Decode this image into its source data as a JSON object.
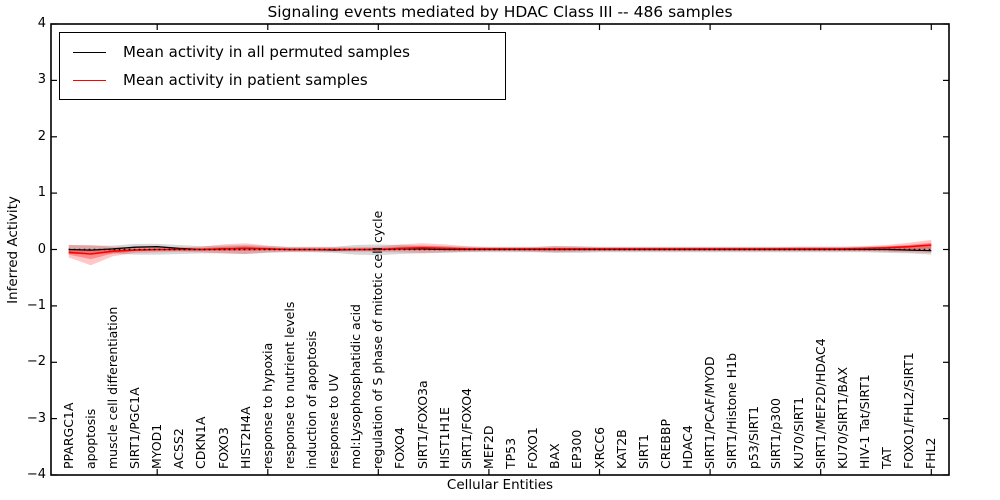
{
  "chart_data": {
    "type": "line",
    "title": "Signaling events mediated by HDAC Class III -- 486 samples",
    "xlabel": "Cellular Entities",
    "ylabel": "Inferred Activity",
    "xlim": [
      0.2,
      40.8
    ],
    "ylim": [
      -4,
      4
    ],
    "grid": false,
    "yticks": [
      {
        "v": 4,
        "label": "4"
      },
      {
        "v": 3,
        "label": "3"
      },
      {
        "v": 2,
        "label": "2"
      },
      {
        "v": 1,
        "label": "1"
      },
      {
        "v": 0,
        "label": "0"
      },
      {
        "v": -1,
        "label": "−1"
      },
      {
        "v": -2,
        "label": "−2"
      },
      {
        "v": -3,
        "label": "−3"
      },
      {
        "v": -4,
        "label": "−4"
      }
    ],
    "xticks_major": [
      5,
      10,
      15,
      20,
      25,
      30,
      35,
      40
    ],
    "legend": {
      "position": "upper left",
      "entries": [
        {
          "label": "Mean activity in all permuted samples",
          "color": "#000000"
        },
        {
          "label": "Mean activity in patient samples",
          "color": "#ff0000"
        }
      ]
    },
    "zero_line": {
      "y": 0,
      "style": "dotted",
      "color": "#000000"
    },
    "categories": [
      "PPARGC1A",
      "apoptosis",
      "muscle cell differentiation",
      "SIRT1/PGC1A",
      "MYOD1",
      "ACSS2",
      "CDKN1A",
      "FOXO3",
      "HIST2H4A",
      "response to hypoxia",
      "response to nutrient levels",
      "induction of apoptosis",
      "response to UV",
      "mol:Lysophosphatidic acid",
      "regulation of S phase of mitotic cell cycle",
      "FOXO4",
      "SIRT1/FOXO3a",
      "HIST1H1E",
      "SIRT1/FOXO4",
      "MEF2D",
      "TP53",
      "FOXO1",
      "BAX",
      "EP300",
      "XRCC6",
      "KAT2B",
      "SIRT1",
      "CREBBP",
      "HDAC4",
      "SIRT1/PCAF/MYOD",
      "SIRT1/Histone H1b",
      "p53/SIRT1",
      "SIRT1/p300",
      "KU70/SIRT1",
      "SIRT1/MEF2D/HDAC4",
      "KU70/SIRT1/BAX",
      "HIV-1 Tat/SIRT1",
      "TAT",
      "FOXO1/FHL2/SIRT1",
      "FHL2"
    ],
    "series": [
      {
        "name": "Mean activity in all permuted samples",
        "color": "#000000",
        "band_color": "rgba(0,0,0,0.16)",
        "values": [
          0.0,
          -0.01,
          0.01,
          0.04,
          0.05,
          0.02,
          0.0,
          0.01,
          0.02,
          0.01,
          0.0,
          0.0,
          -0.01,
          0.0,
          0.0,
          0.01,
          0.01,
          0.0,
          0.0,
          0.0,
          0.0,
          0.0,
          0.0,
          0.0,
          0.0,
          0.0,
          0.0,
          0.0,
          0.0,
          0.0,
          0.0,
          0.0,
          0.0,
          0.0,
          0.0,
          0.0,
          0.0,
          0.0,
          -0.01,
          -0.02
        ],
        "band_hi": [
          0.08,
          0.07,
          0.07,
          0.1,
          0.1,
          0.08,
          0.06,
          0.07,
          0.08,
          0.06,
          0.05,
          0.05,
          0.05,
          0.08,
          0.09,
          0.08,
          0.07,
          0.06,
          0.05,
          0.05,
          0.05,
          0.05,
          0.06,
          0.06,
          0.05,
          0.05,
          0.05,
          0.05,
          0.05,
          0.05,
          0.05,
          0.05,
          0.05,
          0.05,
          0.05,
          0.05,
          0.05,
          0.06,
          0.07,
          0.09
        ],
        "band_lo": [
          -0.08,
          -0.08,
          -0.07,
          -0.09,
          -0.09,
          -0.08,
          -0.07,
          -0.07,
          -0.08,
          -0.06,
          -0.05,
          -0.05,
          -0.06,
          -0.09,
          -0.1,
          -0.08,
          -0.07,
          -0.06,
          -0.05,
          -0.05,
          -0.05,
          -0.05,
          -0.06,
          -0.06,
          -0.05,
          -0.05,
          -0.05,
          -0.05,
          -0.05,
          -0.05,
          -0.05,
          -0.05,
          -0.05,
          -0.05,
          -0.05,
          -0.05,
          -0.05,
          -0.06,
          -0.07,
          -0.09
        ]
      },
      {
        "name": "Mean activity in patient samples",
        "color": "#ff0000",
        "band_color": "rgba(255,0,0,0.22)",
        "band_inner_color": "rgba(255,0,0,0.30)",
        "values": [
          -0.05,
          -0.08,
          -0.03,
          -0.01,
          0.0,
          0.0,
          0.0,
          0.01,
          0.02,
          0.01,
          0.0,
          0.0,
          0.0,
          0.0,
          0.0,
          0.02,
          0.03,
          0.02,
          0.01,
          0.01,
          0.01,
          0.01,
          0.01,
          0.01,
          0.01,
          0.01,
          0.01,
          0.01,
          0.01,
          0.01,
          0.01,
          0.01,
          0.01,
          0.01,
          0.01,
          0.01,
          0.02,
          0.03,
          0.05,
          0.08
        ],
        "band_hi": [
          0.08,
          0.08,
          0.05,
          0.04,
          0.04,
          0.04,
          0.05,
          0.09,
          0.11,
          0.07,
          0.04,
          0.04,
          0.04,
          0.04,
          0.05,
          0.09,
          0.11,
          0.09,
          0.06,
          0.04,
          0.04,
          0.04,
          0.06,
          0.05,
          0.04,
          0.04,
          0.04,
          0.04,
          0.04,
          0.04,
          0.04,
          0.04,
          0.04,
          0.05,
          0.05,
          0.05,
          0.06,
          0.08,
          0.12,
          0.17
        ],
        "band_lo": [
          -0.14,
          -0.28,
          -0.12,
          -0.06,
          -0.05,
          -0.04,
          -0.05,
          -0.07,
          -0.08,
          -0.05,
          -0.04,
          -0.04,
          -0.04,
          -0.04,
          -0.04,
          -0.05,
          -0.06,
          -0.05,
          -0.04,
          -0.03,
          -0.03,
          -0.04,
          -0.05,
          -0.04,
          -0.03,
          -0.03,
          -0.03,
          -0.03,
          -0.03,
          -0.03,
          -0.03,
          -0.03,
          -0.03,
          -0.03,
          -0.03,
          -0.03,
          -0.03,
          -0.04,
          -0.05,
          -0.06
        ]
      }
    ]
  }
}
